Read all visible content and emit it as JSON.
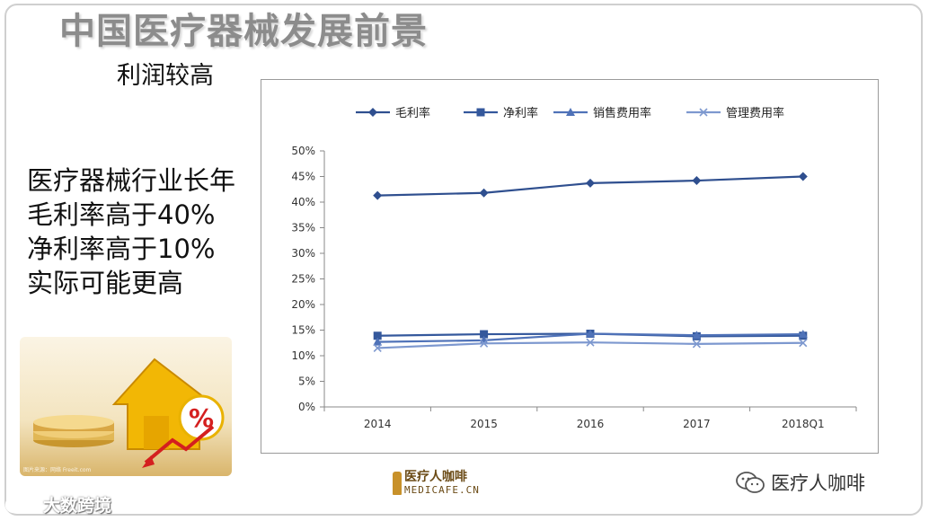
{
  "slide": {
    "title": "中国医疗器械发展前景",
    "subtitle": "利润较高",
    "bullets": [
      "医疗器械行业长年",
      "毛利率高于40%",
      "净利率高于10%",
      "实际可能更高"
    ],
    "photo_caption": "图片来源：网络 Freeit.com",
    "footer_logo_cn": "医疗人咖啡",
    "footer_logo_en": "MEDICAFE.CN",
    "wechat_account": "医疗人咖啡",
    "watermark": "大数跨境",
    "watermark_icon": "logo-icon",
    "wechat_icon": "wechat-icon"
  },
  "chart_data": {
    "type": "line",
    "categories": [
      "2014",
      "2015",
      "2016",
      "2017",
      "2018Q1"
    ],
    "yticks": [
      "0%",
      "5%",
      "10%",
      "15%",
      "20%",
      "25%",
      "30%",
      "35%",
      "40%",
      "45%",
      "50%"
    ],
    "ylim": [
      0,
      50
    ],
    "legend_position": "top",
    "grid": false,
    "series": [
      {
        "name": "毛利率",
        "marker": "diamond",
        "color": "#2f4f8f",
        "values": [
          41.3,
          41.8,
          43.7,
          44.2,
          45.0
        ]
      },
      {
        "name": "净利率",
        "marker": "square",
        "color": "#34589c",
        "values": [
          13.9,
          14.2,
          14.3,
          13.8,
          13.9
        ]
      },
      {
        "name": "销售费用率",
        "marker": "triangle",
        "color": "#4f72b8",
        "values": [
          12.7,
          13.0,
          14.3,
          14.0,
          14.2
        ]
      },
      {
        "name": "管理费用率",
        "marker": "x",
        "color": "#7d98cf",
        "values": [
          11.5,
          12.4,
          12.6,
          12.3,
          12.5
        ]
      }
    ]
  }
}
